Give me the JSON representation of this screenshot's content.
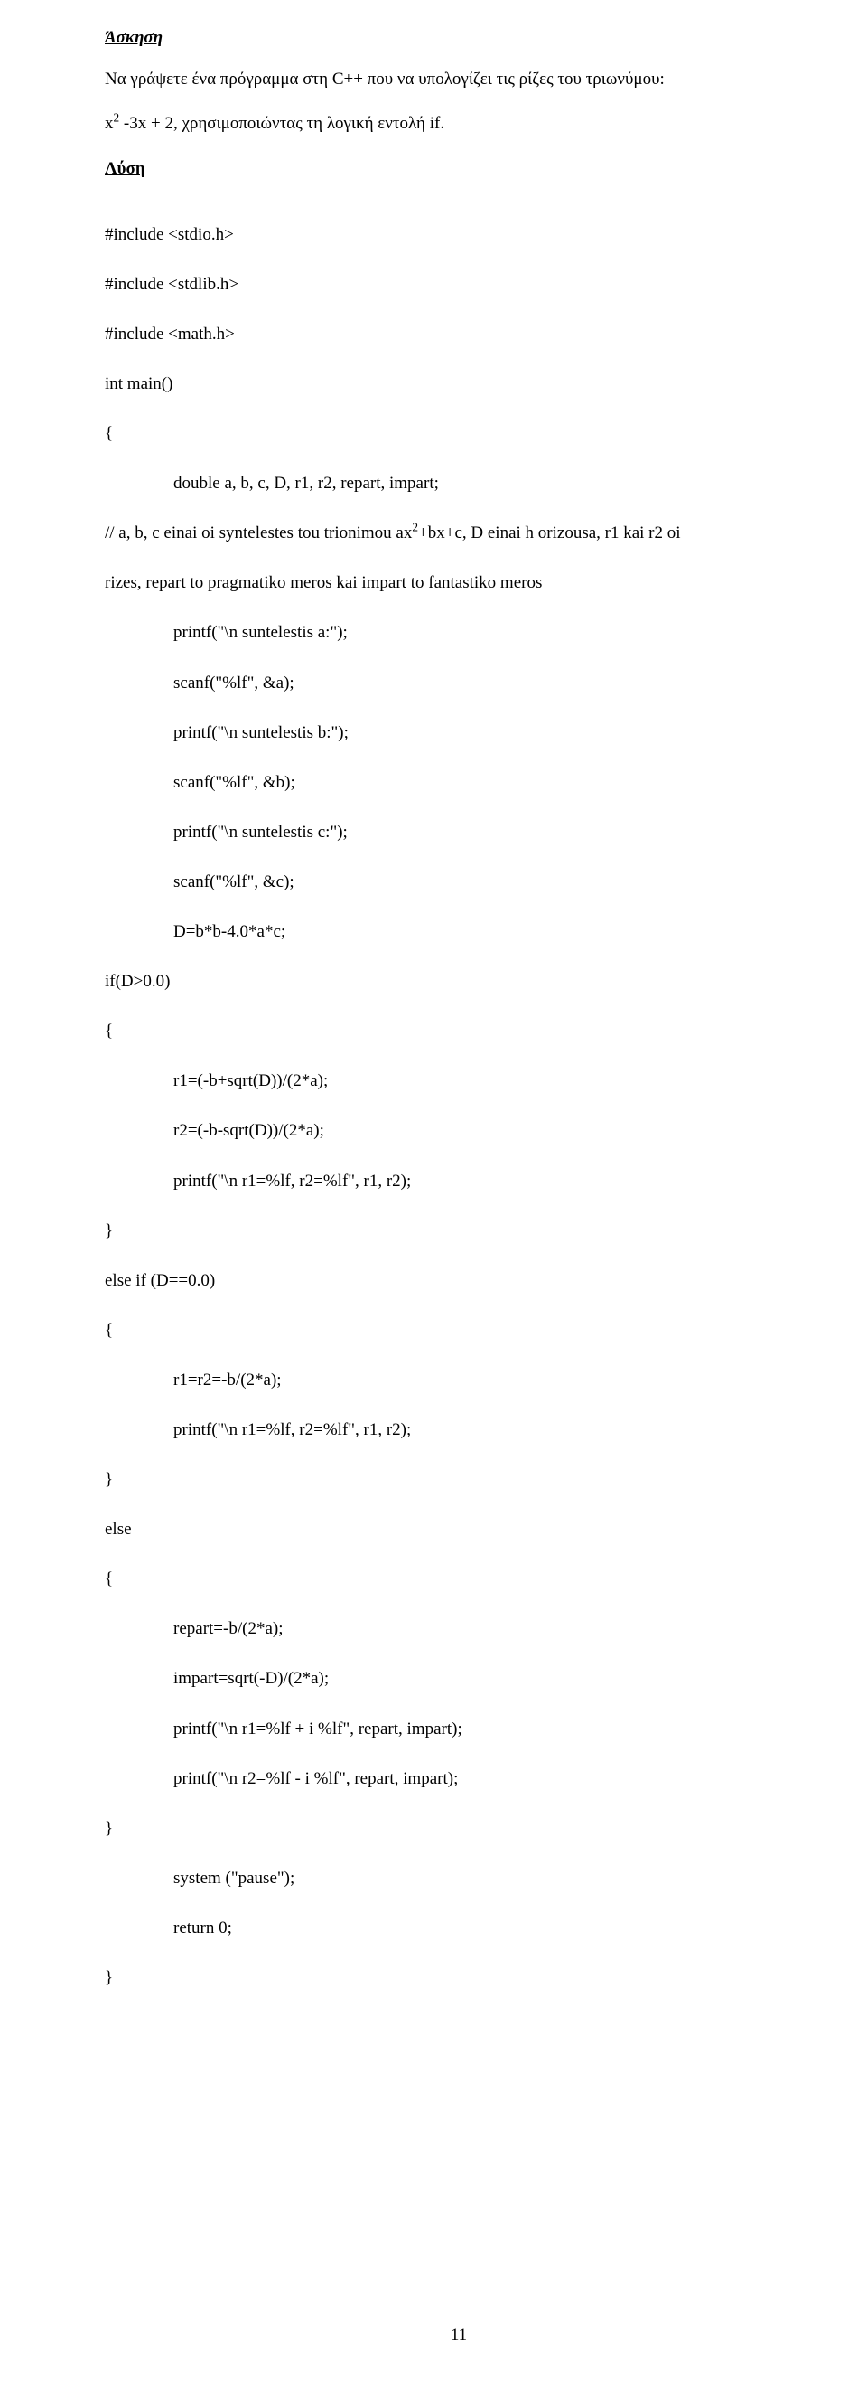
{
  "headings": {
    "exercise": "Άσκηση",
    "solution": "Λύση"
  },
  "problem": {
    "line1_pre": "Να γράψετε ένα πρόγραμμα στη C++ που να υπολογίζει τις ρίζες του τριωνύμου:",
    "line2_pre": "x",
    "line2_sup": "2",
    "line2_post": " -3x + 2, χρησιμοποιώντας τη λογική εντολή if."
  },
  "code": {
    "l01": "#include <stdio.h>",
    "l02": "#include <stdlib.h>",
    "l03": "#include <math.h>",
    "l04": "int main()",
    "l05": "{",
    "l06": "double a, b, c, D, r1, r2, repart, impart;",
    "l07_pre": "// a, b, c einai oi syntelestes tou trionimou ax",
    "l07_sup": "2",
    "l07_post": "+bx+c, D einai h orizousa, r1 kai r2 oi",
    "l08": "rizes, repart to pragmatiko meros kai impart to fantastiko meros",
    "l09": "printf(\"\\n suntelestis a:\");",
    "l10": "scanf(\"%lf\", &a);",
    "l11": "printf(\"\\n suntelestis b:\");",
    "l12": "scanf(\"%lf\", &b);",
    "l13": "printf(\"\\n suntelestis c:\");",
    "l14": "scanf(\"%lf\", &c);",
    "l15": "D=b*b-4.0*a*c;",
    "l16": "if(D>0.0)",
    "l17": "{",
    "l18": "r1=(-b+sqrt(D))/(2*a);",
    "l19": "r2=(-b-sqrt(D))/(2*a);",
    "l20": "printf(\"\\n r1=%lf, r2=%lf\", r1, r2);",
    "l21": "}",
    "l22": "else if (D==0.0)",
    "l23": "{",
    "l24": "r1=r2=-b/(2*a);",
    "l25": "printf(\"\\n r1=%lf, r2=%lf\", r1, r2);",
    "l26": "}",
    "l27": "else",
    "l28": "{",
    "l29": "repart=-b/(2*a);",
    "l30": "impart=sqrt(-D)/(2*a);",
    "l31": "printf(\"\\n r1=%lf + i %lf\", repart, impart);",
    "l32": "printf(\"\\n r2=%lf - i %lf\", repart, impart);",
    "l33": "}",
    "l34": "system (\"pause\");",
    "l35": "return 0;",
    "l36": "}"
  },
  "page_number": "11"
}
